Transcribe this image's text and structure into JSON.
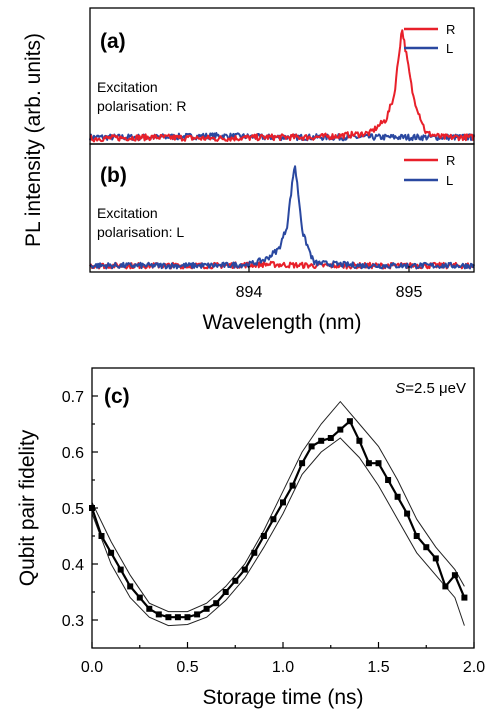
{
  "chart_data": [
    {
      "type": "line",
      "panel_label": "(a)",
      "annotation": [
        "Excitation",
        "polarisation: R"
      ],
      "legend_placement": "top-right",
      "xlim": [
        893.1,
        895.5
      ],
      "ylim": [
        0,
        1
      ],
      "series": [
        {
          "name": "R",
          "color": "#e8202a",
          "x": [
            893.1,
            893.5,
            893.9,
            894.2,
            894.5,
            894.65,
            894.85,
            894.95,
            895.0,
            895.05,
            895.12,
            895.2,
            895.3,
            895.5
          ],
          "y": [
            0.04,
            0.05,
            0.04,
            0.05,
            0.05,
            0.06,
            0.08,
            0.18,
            0.35,
            0.85,
            0.35,
            0.08,
            0.05,
            0.05
          ]
        },
        {
          "name": "L",
          "color": "#2a48a0",
          "x": [
            893.1,
            893.5,
            893.9,
            894.2,
            894.5,
            894.8,
            895.1,
            895.5
          ],
          "y": [
            0.05,
            0.05,
            0.06,
            0.05,
            0.05,
            0.05,
            0.05,
            0.05
          ]
        }
      ],
      "ylabel": "PL intensity (arb. units)"
    },
    {
      "type": "line",
      "panel_label": "(b)",
      "annotation": [
        "Excitation",
        "polarisation: L"
      ],
      "legend_placement": "top-right",
      "xlim": [
        893.1,
        895.5
      ],
      "ylim": [
        0,
        1
      ],
      "xticks": [
        894,
        895
      ],
      "xlabel": "Wavelength (nm)",
      "series": [
        {
          "name": "R",
          "color": "#e8202a",
          "x": [
            893.1,
            893.5,
            893.9,
            894.2,
            894.5,
            894.8,
            895.1,
            895.5
          ],
          "y": [
            0.05,
            0.05,
            0.05,
            0.06,
            0.05,
            0.05,
            0.05,
            0.05
          ]
        },
        {
          "name": "L",
          "color": "#2a48a0",
          "x": [
            893.1,
            893.5,
            893.9,
            894.1,
            894.2,
            894.28,
            894.33,
            894.38,
            894.43,
            894.5,
            894.8,
            895.1,
            895.5
          ],
          "y": [
            0.05,
            0.05,
            0.05,
            0.06,
            0.1,
            0.18,
            0.35,
            0.85,
            0.3,
            0.07,
            0.05,
            0.05,
            0.05
          ]
        }
      ]
    },
    {
      "type": "line",
      "panel_label": "(c)",
      "annotation_var": "S",
      "annotation_rest": "=2.5 μeV",
      "xlim": [
        0,
        2.0
      ],
      "ylim": [
        0.25,
        0.75
      ],
      "xticks": [
        0.0,
        0.5,
        1.0,
        1.5,
        2.0
      ],
      "yticks": [
        0.3,
        0.4,
        0.5,
        0.6,
        0.7
      ],
      "xlabel": "Storage time (ns)",
      "ylabel": "Qubit pair fidelity",
      "series": [
        {
          "name": "fidelity",
          "x": [
            0.0,
            0.05,
            0.1,
            0.15,
            0.2,
            0.25,
            0.3,
            0.35,
            0.4,
            0.45,
            0.5,
            0.55,
            0.6,
            0.65,
            0.7,
            0.75,
            0.8,
            0.85,
            0.9,
            0.95,
            1.0,
            1.05,
            1.1,
            1.15,
            1.2,
            1.25,
            1.3,
            1.35,
            1.4,
            1.45,
            1.5,
            1.55,
            1.6,
            1.65,
            1.7,
            1.75,
            1.8,
            1.85,
            1.9,
            1.95
          ],
          "y": [
            0.5,
            0.45,
            0.42,
            0.39,
            0.36,
            0.34,
            0.32,
            0.31,
            0.305,
            0.305,
            0.305,
            0.31,
            0.32,
            0.33,
            0.35,
            0.37,
            0.39,
            0.42,
            0.45,
            0.48,
            0.51,
            0.54,
            0.58,
            0.61,
            0.62,
            0.625,
            0.64,
            0.655,
            0.62,
            0.58,
            0.58,
            0.55,
            0.52,
            0.49,
            0.45,
            0.43,
            0.41,
            0.36,
            0.38,
            0.34
          ]
        },
        {
          "name": "upper",
          "x": [
            0.0,
            0.1,
            0.2,
            0.3,
            0.4,
            0.5,
            0.6,
            0.7,
            0.8,
            0.9,
            1.0,
            1.1,
            1.2,
            1.3,
            1.4,
            1.5,
            1.6,
            1.7,
            1.8,
            1.9,
            1.95
          ],
          "y": [
            0.51,
            0.44,
            0.38,
            0.33,
            0.315,
            0.315,
            0.33,
            0.36,
            0.4,
            0.46,
            0.53,
            0.6,
            0.65,
            0.69,
            0.65,
            0.61,
            0.55,
            0.48,
            0.43,
            0.39,
            0.36
          ]
        },
        {
          "name": "lower",
          "x": [
            0.0,
            0.1,
            0.2,
            0.3,
            0.4,
            0.5,
            0.6,
            0.7,
            0.8,
            0.9,
            1.0,
            1.1,
            1.2,
            1.3,
            1.4,
            1.5,
            1.6,
            1.7,
            1.8,
            1.9,
            1.95
          ],
          "y": [
            0.49,
            0.4,
            0.34,
            0.305,
            0.29,
            0.292,
            0.305,
            0.335,
            0.375,
            0.43,
            0.49,
            0.56,
            0.6,
            0.625,
            0.59,
            0.54,
            0.48,
            0.42,
            0.38,
            0.34,
            0.29
          ]
        }
      ]
    }
  ]
}
